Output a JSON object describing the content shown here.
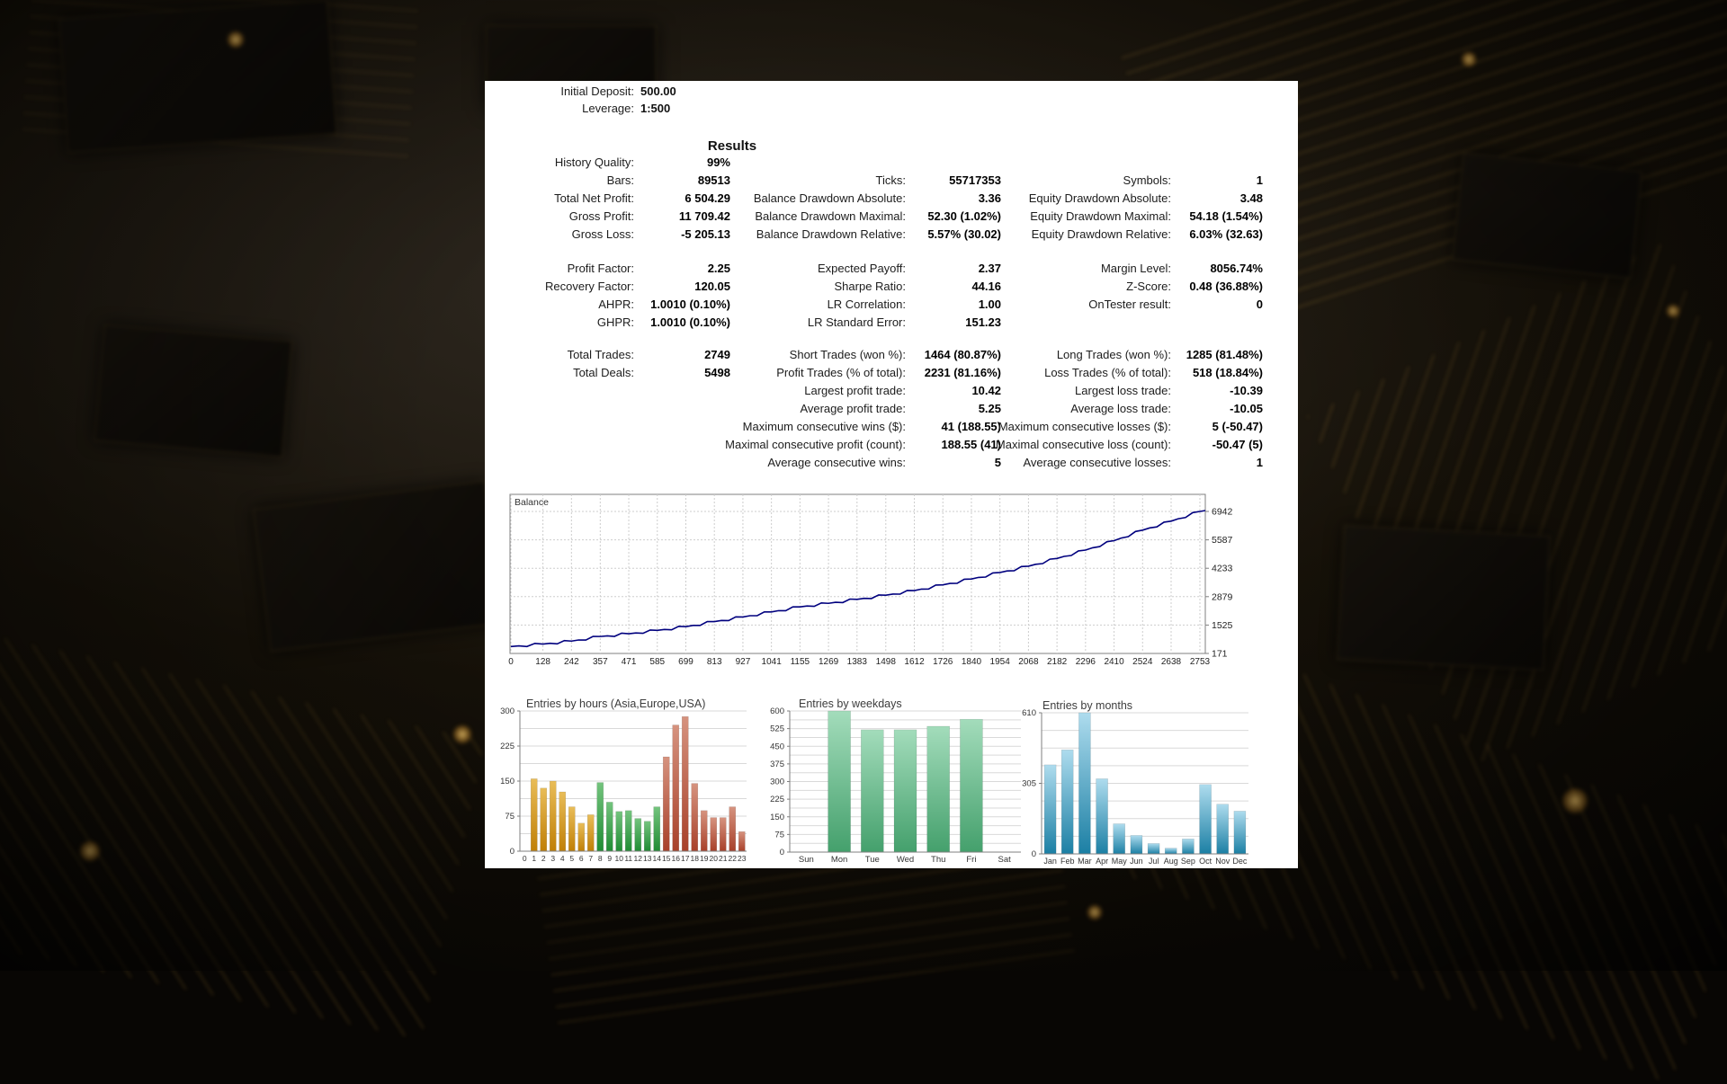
{
  "header": {
    "initial_deposit_label": "Initial Deposit:",
    "initial_deposit_value": "500.00",
    "leverage_label": "Leverage:",
    "leverage_value": "1:500",
    "results_title": "Results"
  },
  "stats": {
    "sections": [
      {
        "rows": [
          {
            "c1": {
              "label": "History Quality:",
              "value": "99%"
            }
          },
          {
            "c1": {
              "label": "Bars:",
              "value": "89513"
            },
            "c2": {
              "label": "Ticks:",
              "value": "55717353"
            },
            "c3": {
              "label": "Symbols:",
              "value": "1"
            }
          },
          {
            "c1": {
              "label": "Total Net Profit:",
              "value": "6 504.29"
            },
            "c2": {
              "label": "Balance Drawdown Absolute:",
              "value": "3.36"
            },
            "c3": {
              "label": "Equity Drawdown Absolute:",
              "value": "3.48"
            }
          },
          {
            "c1": {
              "label": "Gross Profit:",
              "value": "11 709.42"
            },
            "c2": {
              "label": "Balance Drawdown Maximal:",
              "value": "52.30 (1.02%)"
            },
            "c3": {
              "label": "Equity Drawdown Maximal:",
              "value": "54.18 (1.54%)"
            }
          },
          {
            "c1": {
              "label": "Gross Loss:",
              "value": "-5 205.13"
            },
            "c2": {
              "label": "Balance Drawdown Relative:",
              "value": "5.57% (30.02)"
            },
            "c3": {
              "label": "Equity Drawdown Relative:",
              "value": "6.03% (32.63)"
            }
          }
        ]
      },
      {
        "rows": [
          {
            "c1": {
              "label": "Profit Factor:",
              "value": "2.25"
            },
            "c2": {
              "label": "Expected Payoff:",
              "value": "2.37"
            },
            "c3": {
              "label": "Margin Level:",
              "value": "8056.74%"
            }
          },
          {
            "c1": {
              "label": "Recovery Factor:",
              "value": "120.05"
            },
            "c2": {
              "label": "Sharpe Ratio:",
              "value": "44.16"
            },
            "c3": {
              "label": "Z-Score:",
              "value": "0.48 (36.88%)"
            }
          },
          {
            "c1": {
              "label": "AHPR:",
              "value": "1.0010 (0.10%)"
            },
            "c2": {
              "label": "LR Correlation:",
              "value": "1.00"
            },
            "c3": {
              "label": "OnTester result:",
              "value": "0"
            }
          },
          {
            "c1": {
              "label": "GHPR:",
              "value": "1.0010 (0.10%)"
            },
            "c2": {
              "label": "LR Standard Error:",
              "value": "151.23"
            }
          }
        ]
      },
      {
        "rows": [
          {
            "c1": {
              "label": "Total Trades:",
              "value": "2749"
            },
            "c2": {
              "label": "Short Trades (won %):",
              "value": "1464 (80.87%)"
            },
            "c3": {
              "label": "Long Trades (won %):",
              "value": "1285 (81.48%)"
            }
          },
          {
            "c1": {
              "label": "Total Deals:",
              "value": "5498"
            },
            "c2": {
              "label": "Profit Trades (% of total):",
              "value": "2231 (81.16%)"
            },
            "c3": {
              "label": "Loss Trades (% of total):",
              "value": "518 (18.84%)"
            }
          },
          {
            "c2": {
              "label": "Largest profit trade:",
              "value": "10.42"
            },
            "c3": {
              "label": "Largest loss trade:",
              "value": "-10.39"
            }
          },
          {
            "c2": {
              "label": "Average profit trade:",
              "value": "5.25"
            },
            "c3": {
              "label": "Average loss trade:",
              "value": "-10.05"
            }
          },
          {
            "c2": {
              "label": "Maximum consecutive wins ($):",
              "value": "41 (188.55)"
            },
            "c3": {
              "label": "Maximum consecutive losses ($):",
              "value": "5 (-50.47)"
            }
          },
          {
            "c2": {
              "label": "Maximal consecutive profit (count):",
              "value": "188.55 (41)"
            },
            "c3": {
              "label": "Maximal consecutive loss (count):",
              "value": "-50.47 (5)"
            }
          },
          {
            "c2": {
              "label": "Average consecutive wins:",
              "value": "5"
            },
            "c3": {
              "label": "Average consecutive losses:",
              "value": "1"
            }
          }
        ]
      }
    ]
  },
  "chart_data": [
    {
      "type": "line",
      "title": "Balance",
      "line_color": "#00007e",
      "grid": true,
      "legend_position": "none",
      "ylim": [
        171,
        7150
      ],
      "x": [
        0,
        128,
        242,
        357,
        471,
        585,
        699,
        813,
        927,
        1041,
        1155,
        1269,
        1383,
        1498,
        1612,
        1726,
        1840,
        1954,
        2068,
        2182,
        2296,
        2410,
        2524,
        2638,
        2753
      ],
      "y": [
        500,
        620,
        760,
        980,
        1110,
        1270,
        1450,
        1690,
        1910,
        2150,
        2390,
        2560,
        2750,
        2950,
        3170,
        3440,
        3720,
        4030,
        4330,
        4700,
        5100,
        5550,
        6050,
        6480,
        6942
      ],
      "x_ticks": [
        "0",
        "128",
        "242",
        "357",
        "471",
        "585",
        "699",
        "813",
        "927",
        "1041",
        "1155",
        "1269",
        "1383",
        "1498",
        "1612",
        "1726",
        "1840",
        "1954",
        "2068",
        "2182",
        "2296",
        "2410",
        "2524",
        "2638",
        "2753"
      ],
      "y_ticks": [
        171,
        1525,
        2879,
        4233,
        5587,
        6942
      ]
    },
    {
      "type": "bar",
      "title": "Entries by hours (Asia,Europe,USA)",
      "categories": [
        "0",
        "1",
        "2",
        "3",
        "4",
        "5",
        "6",
        "7",
        "8",
        "9",
        "10",
        "11",
        "12",
        "13",
        "14",
        "15",
        "16",
        "17",
        "18",
        "19",
        "20",
        "21",
        "22",
        "23"
      ],
      "values": [
        0,
        155,
        135,
        150,
        127,
        95,
        60,
        78,
        147,
        105,
        85,
        87,
        70,
        64,
        95,
        202,
        270,
        288,
        145,
        87,
        72,
        72,
        95,
        42
      ],
      "ylim": [
        0,
        300
      ],
      "y_ticks": [
        0,
        75,
        150,
        225,
        300
      ],
      "grid_step": 37.5,
      "color_segments": [
        {
          "start": 0,
          "end": 7,
          "top": "#e9bd58",
          "bottom": "#c07f06",
          "name": "asia-orange"
        },
        {
          "start": 8,
          "end": 14,
          "top": "#74c47e",
          "bottom": "#1f8c33",
          "name": "europe-green"
        },
        {
          "start": 15,
          "end": 23,
          "top": "#d6937f",
          "bottom": "#a84029",
          "name": "usa-red"
        }
      ]
    },
    {
      "type": "bar",
      "title": "Entries by weekdays",
      "categories": [
        "Sun",
        "Mon",
        "Tue",
        "Wed",
        "Thu",
        "Fri",
        "Sat"
      ],
      "values": [
        0,
        600,
        520,
        520,
        535,
        565,
        0
      ],
      "ylim": [
        0,
        600
      ],
      "y_ticks": [
        0,
        75,
        150,
        225,
        300,
        375,
        450,
        525,
        600
      ],
      "grid_step": 37.5,
      "color_top": "#a3dcbb",
      "color_bottom": "#44a06c"
    },
    {
      "type": "bar",
      "title": "Entries by months",
      "categories": [
        "Jan",
        "Feb",
        "Mar",
        "Apr",
        "May",
        "Jun",
        "Jul",
        "Aug",
        "Sep",
        "Oct",
        "Nov",
        "Dec"
      ],
      "values": [
        385,
        450,
        610,
        325,
        130,
        80,
        45,
        25,
        65,
        300,
        215,
        185
      ],
      "ylim": [
        0,
        610
      ],
      "y_ticks": [
        0,
        305,
        610
      ],
      "grid_step": 76.25,
      "color_top": "#aedcee",
      "color_bottom": "#1b7fa4"
    }
  ],
  "colors": {
    "panel_bg": "#ffffff",
    "axis": "#7f7f7f",
    "grid": "#cdcdcd",
    "bar_grid": "#d9d9d9",
    "tick_text": "#3a3a3a",
    "wallpaper_gold": "#d6a23e"
  }
}
